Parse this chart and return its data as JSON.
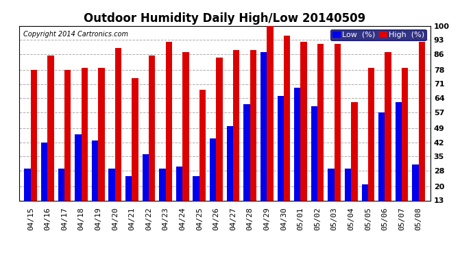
{
  "title": "Outdoor Humidity Daily High/Low 20140509",
  "copyright": "Copyright 2014 Cartronics.com",
  "legend_low_label": "Low  (%)",
  "legend_high_label": "High  (%)",
  "dates": [
    "04/15",
    "04/16",
    "04/17",
    "04/18",
    "04/19",
    "04/20",
    "04/21",
    "04/22",
    "04/23",
    "04/24",
    "04/25",
    "04/26",
    "04/27",
    "04/28",
    "04/29",
    "04/30",
    "05/01",
    "05/02",
    "05/03",
    "05/04",
    "05/05",
    "05/06",
    "05/07",
    "05/08"
  ],
  "high_values": [
    78,
    85,
    78,
    79,
    79,
    89,
    74,
    85,
    92,
    87,
    68,
    84,
    88,
    88,
    100,
    95,
    92,
    91,
    91,
    62,
    79,
    87,
    79,
    92
  ],
  "low_values": [
    29,
    42,
    29,
    46,
    43,
    29,
    25,
    36,
    29,
    30,
    25,
    44,
    50,
    61,
    87,
    65,
    69,
    60,
    29,
    29,
    21,
    57,
    62,
    31
  ],
  "low_color": "#0000ee",
  "high_color": "#dd0000",
  "bg_color": "#ffffff",
  "plot_bg_color": "#ffffff",
  "grid_color": "#aaaaaa",
  "yticks": [
    13,
    20,
    28,
    35,
    42,
    49,
    57,
    64,
    71,
    78,
    86,
    93,
    100
  ],
  "ylim": [
    13,
    100
  ],
  "bar_width": 0.38,
  "title_fontsize": 12,
  "tick_fontsize": 8,
  "legend_fontsize": 8,
  "copyright_fontsize": 7
}
